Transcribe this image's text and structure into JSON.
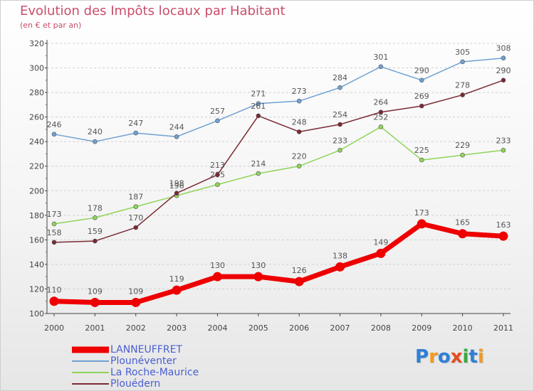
{
  "title": "Evolution des Impôts locaux par Habitant",
  "subtitle": "(en € et par an)",
  "logo": {
    "text": "Proxiti",
    "letters": [
      "P",
      "r",
      "o",
      "x",
      "i",
      "t",
      "i"
    ],
    "colors": [
      "#2f7fd6",
      "#f29b1e",
      "#2f7fd6",
      "#e84c1e",
      "#3aa845",
      "#2f7fd6",
      "#f29b1e"
    ]
  },
  "chart_data": {
    "type": "line",
    "title": "Evolution des Impôts locaux par Habitant",
    "subtitle": "(en € et par an)",
    "xlabel": "",
    "ylabel": "",
    "x": [
      "2000",
      "2001",
      "2002",
      "2003",
      "2004",
      "2005",
      "2006",
      "2007",
      "2008",
      "2009",
      "2010",
      "2011"
    ],
    "ylim": [
      100,
      320
    ],
    "yticks": [
      100,
      120,
      140,
      160,
      180,
      200,
      220,
      240,
      260,
      280,
      300,
      320
    ],
    "grid": "horizontal dashed",
    "legend_position": "bottom-left",
    "series": [
      {
        "name": "LANNEUFFRET",
        "color": "#ee0000",
        "values": [
          110,
          109,
          109,
          119,
          130,
          130,
          126,
          138,
          149,
          173,
          165,
          163
        ]
      },
      {
        "name": "Plounéventer",
        "color": "#6fa1d2",
        "values": [
          246,
          240,
          247,
          244,
          257,
          271,
          273,
          284,
          301,
          290,
          305,
          308
        ]
      },
      {
        "name": "La Roche-Maurice",
        "color": "#8fd45a",
        "values": [
          173,
          178,
          187,
          196,
          205,
          214,
          220,
          233,
          252,
          225,
          229,
          233
        ]
      },
      {
        "name": "Plouédern",
        "color": "#7a2a33",
        "values": [
          158,
          159,
          170,
          198,
          213,
          261,
          248,
          254,
          264,
          269,
          278,
          290
        ]
      }
    ]
  }
}
